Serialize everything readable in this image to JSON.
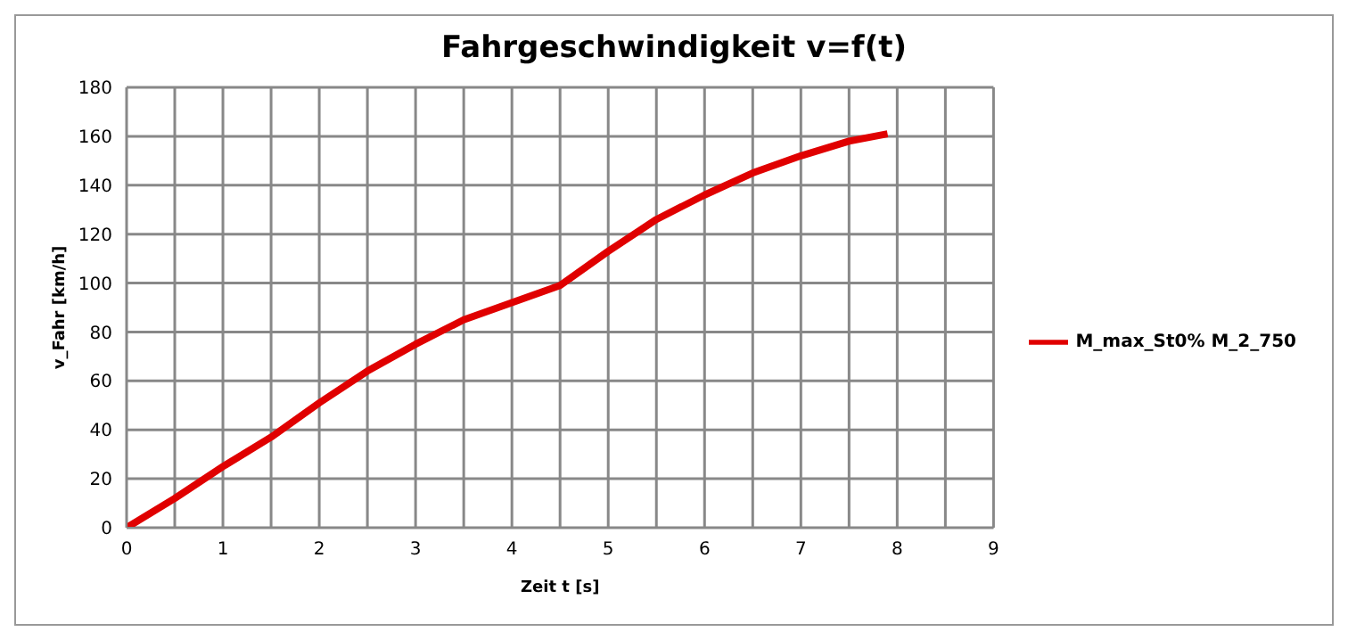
{
  "chart_data": {
    "type": "line",
    "title": "Fahrgeschwindigkeit v=f(t)",
    "xlabel": "Zeit t [s]",
    "ylabel": "v_Fahr  [km/h]",
    "x": [
      0,
      0.5,
      1,
      1.5,
      2,
      2.5,
      3,
      3.5,
      4,
      4.5,
      5,
      5.5,
      6,
      6.5,
      7,
      7.5,
      7.9
    ],
    "series": [
      {
        "name": "M_max_St0% M_2_750",
        "color": "#e00000",
        "values": [
          0,
          12,
          25,
          37,
          51,
          64,
          75,
          85,
          92,
          99,
          113,
          126,
          136,
          145,
          152,
          158,
          161
        ]
      }
    ],
    "xlim": [
      0,
      9
    ],
    "xticks": [
      0,
      {
        "value": 0.5,
        "label": null
      },
      1,
      {
        "value": 1.5,
        "label": null
      },
      2,
      {
        "value": 2.5,
        "label": null
      },
      3,
      {
        "value": 3.5,
        "label": null
      },
      4,
      {
        "value": 4.5,
        "label": null
      },
      5,
      {
        "value": 5.5,
        "label": null
      },
      6,
      {
        "value": 6.5,
        "label": null
      },
      7,
      {
        "value": 7.5,
        "label": null
      },
      8,
      {
        "value": 8.5,
        "label": null
      },
      9
    ],
    "ylim": [
      0,
      180
    ],
    "yticks": [
      0,
      20,
      40,
      60,
      80,
      100,
      120,
      140,
      160,
      180
    ],
    "grid": true,
    "legend": "right",
    "marker": "none",
    "line_style": "solid"
  }
}
